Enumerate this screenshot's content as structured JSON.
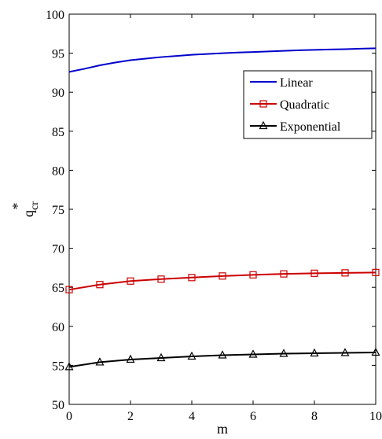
{
  "chart_data": {
    "type": "line",
    "title": "",
    "xlabel": "m",
    "ylabel": {
      "base": "q",
      "sub": "cr",
      "sup": "*"
    },
    "xlim": [
      0,
      10
    ],
    "ylim": [
      50,
      100
    ],
    "xticks": [
      0,
      2,
      4,
      6,
      8,
      10
    ],
    "yticks": [
      50,
      55,
      60,
      65,
      70,
      75,
      80,
      85,
      90,
      95,
      100
    ],
    "grid": false,
    "legend": {
      "placement": "upper-right"
    },
    "series": [
      {
        "name": "Linear",
        "color": "#0000cc",
        "marker": "none",
        "x": [
          0,
          0.5,
          1,
          1.5,
          2,
          2.5,
          3,
          3.5,
          4,
          4.5,
          5,
          5.5,
          6,
          6.5,
          7,
          7.5,
          8,
          8.5,
          9,
          9.5,
          10
        ],
        "y": [
          92.6,
          93.0,
          93.45,
          93.8,
          94.1,
          94.3,
          94.5,
          94.65,
          94.8,
          94.9,
          95.0,
          95.08,
          95.15,
          95.22,
          95.3,
          95.37,
          95.43,
          95.48,
          95.52,
          95.58,
          95.63
        ]
      },
      {
        "name": "Quadratic",
        "color": "#cc0000",
        "marker": "square",
        "x": [
          0,
          1,
          2,
          3,
          4,
          5,
          6,
          7,
          8,
          9,
          10
        ],
        "y": [
          64.7,
          65.35,
          65.8,
          66.05,
          66.25,
          66.45,
          66.6,
          66.72,
          66.8,
          66.85,
          66.9
        ]
      },
      {
        "name": "Exponential",
        "color": "#000000",
        "marker": "triangle",
        "x": [
          0,
          1,
          2,
          3,
          4,
          5,
          6,
          7,
          8,
          9,
          10
        ],
        "y": [
          54.8,
          55.4,
          55.75,
          55.95,
          56.15,
          56.3,
          56.4,
          56.5,
          56.55,
          56.6,
          56.65
        ]
      }
    ]
  }
}
